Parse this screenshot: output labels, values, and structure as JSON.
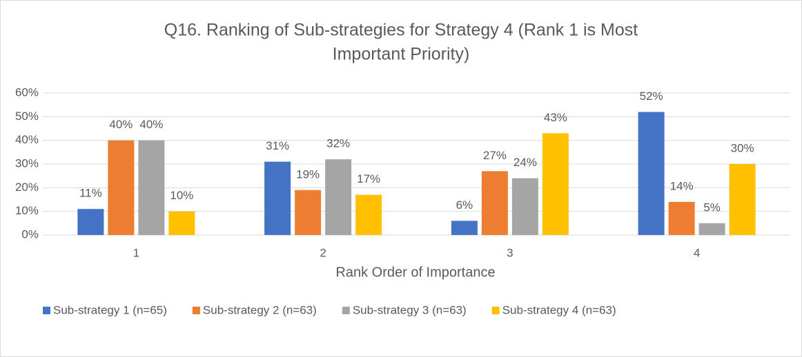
{
  "chart_data": {
    "type": "bar",
    "title": [
      "Q16. Ranking of Sub-strategies for  Strategy 4 (Rank 1 is Most",
      "Important Priority)"
    ],
    "x_label": "Rank Order of Importance",
    "categories": [
      "1",
      "2",
      "3",
      "4"
    ],
    "series": [
      {
        "name": "Sub-strategy 1 (n=65)",
        "color": "#4472c4",
        "values": [
          11,
          31,
          6,
          52
        ],
        "value_labels": [
          "11%",
          "31%",
          "6%",
          "52%"
        ]
      },
      {
        "name": "Sub-strategy 2 (n=63)",
        "color": "#ed7d31",
        "values": [
          40,
          19,
          27,
          14
        ],
        "value_labels": [
          "40%",
          "19%",
          "27%",
          "14%"
        ]
      },
      {
        "name": "Sub-strategy 3 (n=63)",
        "color": "#a5a5a5",
        "values": [
          40,
          32,
          24,
          5
        ],
        "value_labels": [
          "40%",
          "32%",
          "24%",
          "5%"
        ]
      },
      {
        "name": "Sub-strategy 4 (n=63)",
        "color": "#ffc000",
        "values": [
          10,
          17,
          43,
          30
        ],
        "value_labels": [
          "10%",
          "17%",
          "43%",
          "30%"
        ]
      }
    ],
    "ylim": [
      0,
      60
    ],
    "yticks": [
      {
        "value": 0,
        "label": "0%"
      },
      {
        "value": 10,
        "label": "10%"
      },
      {
        "value": 20,
        "label": "20%"
      },
      {
        "value": 30,
        "label": "30%"
      },
      {
        "value": 40,
        "label": "40%"
      },
      {
        "value": 50,
        "label": "50%"
      },
      {
        "value": 60,
        "label": "60%"
      }
    ],
    "grid": true,
    "legend": "bottom"
  }
}
